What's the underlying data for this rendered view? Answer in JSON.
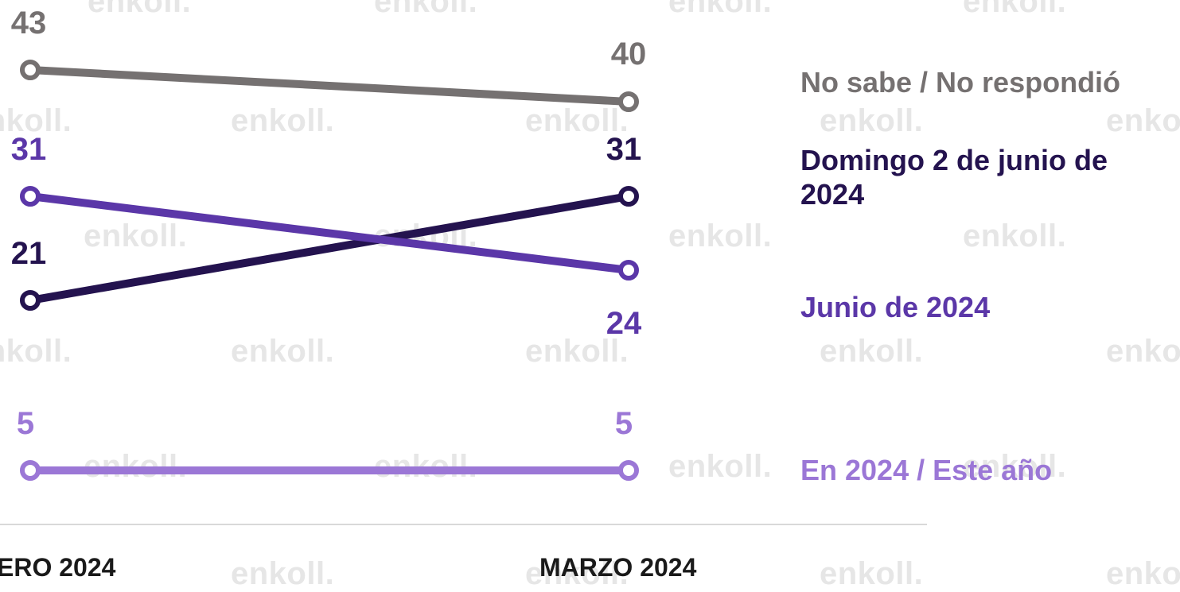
{
  "watermark": "enkoll.",
  "chart_data": {
    "type": "line",
    "categories": [
      "ERO 2024",
      "MARZO 2024"
    ],
    "series": [
      {
        "name": "No sabe / No respondió",
        "values": [
          43,
          40
        ],
        "color": "#757171"
      },
      {
        "name": "Domingo 2 de junio de 2024",
        "values": [
          21,
          31
        ],
        "color": "#24134f"
      },
      {
        "name": "Junio de 2024",
        "values": [
          31,
          24
        ],
        "color": "#5b37a8"
      },
      {
        "name": "En 2024 / Este año",
        "values": [
          5,
          5
        ],
        "color": "#9b77d6"
      }
    ],
    "ylim": [
      0,
      45
    ],
    "grid": false,
    "legend": "right"
  }
}
